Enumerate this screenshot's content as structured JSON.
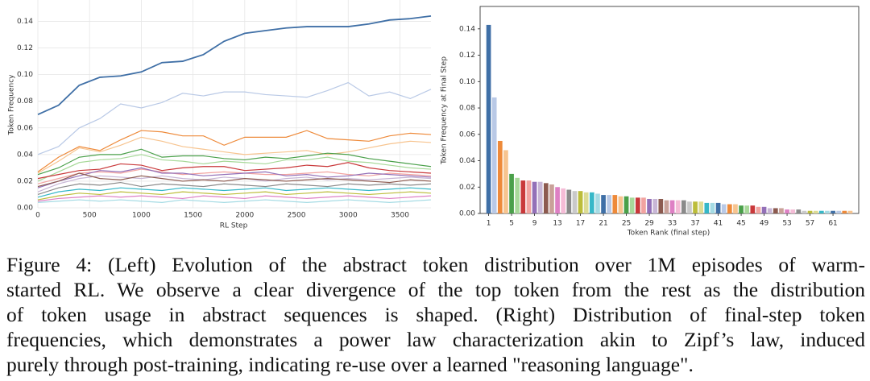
{
  "chart_data": [
    {
      "type": "line",
      "xlabel": "RL Step",
      "ylabel": "Token Frequency",
      "x": [
        0,
        200,
        400,
        600,
        800,
        1000,
        1200,
        1400,
        1600,
        1800,
        2000,
        2200,
        2400,
        2600,
        2800,
        3000,
        3200,
        3400,
        3600,
        3800
      ],
      "xlim": [
        0,
        3800
      ],
      "xticks": [
        0,
        500,
        1000,
        1500,
        2000,
        2500,
        3000,
        3500
      ],
      "ylim": [
        0,
        0.156
      ],
      "yticks": [
        {
          "value": 0,
          "label": "0.00"
        },
        0.02,
        0.04,
        0.06,
        0.08,
        {
          "value": 0.1,
          "label": "0.10"
        },
        0.12,
        0.14
      ],
      "grid": true,
      "series": [
        {
          "color": "#3f6fa6",
          "values": [
            0.07,
            0.077,
            0.092,
            0.098,
            0.099,
            0.102,
            0.109,
            0.11,
            0.115,
            0.125,
            0.131,
            0.133,
            0.135,
            0.136,
            0.136,
            0.136,
            0.138,
            0.141,
            0.142,
            0.144
          ]
        },
        {
          "color": "#b9c9e6",
          "values": [
            0.04,
            0.046,
            0.06,
            0.067,
            0.078,
            0.075,
            0.079,
            0.086,
            0.084,
            0.087,
            0.087,
            0.085,
            0.084,
            0.083,
            0.088,
            0.094,
            0.084,
            0.087,
            0.082,
            0.089
          ]
        },
        {
          "color": "#ee8a3a",
          "values": [
            0.027,
            0.038,
            0.046,
            0.043,
            0.051,
            0.058,
            0.057,
            0.054,
            0.054,
            0.047,
            0.053,
            0.053,
            0.053,
            0.058,
            0.052,
            0.051,
            0.05,
            0.054,
            0.056,
            0.055
          ]
        },
        {
          "color": "#f7c48f",
          "values": [
            0.026,
            0.035,
            0.045,
            0.042,
            0.047,
            0.053,
            0.05,
            0.046,
            0.044,
            0.042,
            0.04,
            0.041,
            0.042,
            0.043,
            0.04,
            0.042,
            0.045,
            0.048,
            0.05,
            0.049
          ]
        },
        {
          "color": "#4aa04a",
          "values": [
            0.025,
            0.03,
            0.038,
            0.04,
            0.04,
            0.044,
            0.038,
            0.039,
            0.039,
            0.037,
            0.036,
            0.038,
            0.037,
            0.039,
            0.041,
            0.04,
            0.037,
            0.035,
            0.033,
            0.031
          ]
        },
        {
          "color": "#a8d99a",
          "values": [
            0.02,
            0.027,
            0.034,
            0.036,
            0.037,
            0.04,
            0.036,
            0.035,
            0.033,
            0.035,
            0.034,
            0.033,
            0.036,
            0.036,
            0.038,
            0.035,
            0.034,
            0.032,
            0.03,
            0.029
          ]
        },
        {
          "color": "#c9383a",
          "values": [
            0.022,
            0.025,
            0.028,
            0.029,
            0.033,
            0.032,
            0.028,
            0.03,
            0.031,
            0.031,
            0.028,
            0.029,
            0.03,
            0.032,
            0.031,
            0.034,
            0.03,
            0.028,
            0.027,
            0.026
          ]
        },
        {
          "color": "#f2a3a0",
          "values": [
            0.018,
            0.022,
            0.026,
            0.027,
            0.026,
            0.029,
            0.027,
            0.025,
            0.026,
            0.027,
            0.026,
            0.025,
            0.025,
            0.026,
            0.027,
            0.025,
            0.024,
            0.026,
            0.025,
            0.024
          ]
        },
        {
          "color": "#9370b8",
          "values": [
            0.015,
            0.02,
            0.024,
            0.028,
            0.027,
            0.03,
            0.026,
            0.026,
            0.024,
            0.025,
            0.026,
            0.027,
            0.024,
            0.025,
            0.023,
            0.024,
            0.026,
            0.025,
            0.024,
            0.023
          ]
        },
        {
          "color": "#c8b6d6",
          "values": [
            0.012,
            0.018,
            0.022,
            0.024,
            0.023,
            0.022,
            0.024,
            0.022,
            0.021,
            0.023,
            0.022,
            0.02,
            0.022,
            0.023,
            0.021,
            0.022,
            0.021,
            0.022,
            0.023,
            0.022
          ]
        },
        {
          "color": "#8c5a4f",
          "values": [
            0.016,
            0.02,
            0.026,
            0.022,
            0.021,
            0.024,
            0.022,
            0.02,
            0.021,
            0.02,
            0.022,
            0.021,
            0.02,
            0.021,
            0.022,
            0.021,
            0.02,
            0.019,
            0.021,
            0.02
          ]
        },
        {
          "color": "#8a8a8a",
          "values": [
            0.01,
            0.015,
            0.018,
            0.017,
            0.019,
            0.016,
            0.018,
            0.017,
            0.016,
            0.018,
            0.017,
            0.016,
            0.018,
            0.017,
            0.016,
            0.018,
            0.017,
            0.018,
            0.017,
            0.018
          ]
        },
        {
          "color": "#36b8c8",
          "values": [
            0.008,
            0.012,
            0.014,
            0.013,
            0.015,
            0.014,
            0.013,
            0.015,
            0.014,
            0.013,
            0.014,
            0.015,
            0.013,
            0.014,
            0.015,
            0.014,
            0.013,
            0.014,
            0.015,
            0.014
          ]
        },
        {
          "color": "#bcbd3a",
          "values": [
            0.006,
            0.009,
            0.011,
            0.01,
            0.012,
            0.011,
            0.01,
            0.012,
            0.011,
            0.01,
            0.011,
            0.012,
            0.01,
            0.011,
            0.012,
            0.011,
            0.01,
            0.011,
            0.012,
            0.011
          ]
        },
        {
          "color": "#de80c4",
          "values": [
            0.005,
            0.007,
            0.008,
            0.009,
            0.008,
            0.009,
            0.008,
            0.007,
            0.009,
            0.008,
            0.007,
            0.009,
            0.008,
            0.007,
            0.008,
            0.009,
            0.008,
            0.007,
            0.008,
            0.009
          ]
        },
        {
          "color": "#a5dbe4",
          "values": [
            0.004,
            0.005,
            0.006,
            0.005,
            0.006,
            0.005,
            0.004,
            0.006,
            0.005,
            0.004,
            0.005,
            0.006,
            0.005,
            0.004,
            0.005,
            0.006,
            0.005,
            0.004,
            0.005,
            0.006
          ]
        }
      ]
    },
    {
      "type": "bar",
      "xlabel": "Token Rank (final step)",
      "ylabel": "Token Frequency at Final Step",
      "categories": [
        "1",
        null,
        null,
        null,
        "5",
        null,
        null,
        null,
        "9",
        null,
        null,
        null,
        "13",
        null,
        null,
        null,
        "17",
        null,
        null,
        null,
        "21",
        null,
        null,
        null,
        "25",
        null,
        null,
        null,
        "29",
        null,
        null,
        null,
        "33",
        null,
        null,
        null,
        "37",
        null,
        null,
        null,
        "41",
        null,
        null,
        null,
        "45",
        null,
        null,
        null,
        "49",
        null,
        null,
        null,
        "53",
        null,
        null,
        null,
        "57",
        null,
        null,
        null,
        "61",
        null,
        null,
        null
      ],
      "values": [
        0.143,
        0.088,
        0.055,
        0.048,
        0.03,
        0.027,
        0.025,
        0.025,
        0.024,
        0.024,
        0.023,
        0.022,
        0.02,
        0.019,
        0.018,
        0.017,
        0.017,
        0.016,
        0.016,
        0.015,
        0.014,
        0.014,
        0.014,
        0.013,
        0.013,
        0.012,
        0.012,
        0.012,
        0.011,
        0.011,
        0.011,
        0.01,
        0.01,
        0.01,
        0.01,
        0.009,
        0.009,
        0.009,
        0.008,
        0.008,
        0.008,
        0.007,
        0.007,
        0.007,
        0.006,
        0.006,
        0.006,
        0.005,
        0.005,
        0.004,
        0.004,
        0.004,
        0.003,
        0.003,
        0.003,
        0.002,
        0.002,
        0.002,
        0.002,
        0.002,
        0.002,
        0.002,
        0.002,
        0.002
      ],
      "colors": [
        "#3f6fa6",
        "#b9c9e6",
        "#ee8a3a",
        "#f7c48f",
        "#4aa04a",
        "#a8d99a",
        "#c9383a",
        "#f2a3a0",
        "#9370b8",
        "#c8b6d6",
        "#8c5a4f",
        "#c9a199",
        "#de80c4",
        "#f4bcd6",
        "#8a8a8a",
        "#c9c9c9",
        "#bcbd3a",
        "#dcdc94",
        "#36b8c8",
        "#a5dbe4"
      ],
      "ylim": [
        0,
        0.157
      ],
      "yticks": [
        {
          "value": 0,
          "label": "0.00"
        },
        0.02,
        0.04,
        0.06,
        0.08,
        {
          "value": 0.1,
          "label": "0.10"
        },
        0.12,
        0.14
      ]
    }
  ],
  "caption": {
    "lines": [
      "Figure 4: (Left) Evolution of the abstract token distribution over 1M episodes of warm-",
      "started RL. We observe a clear divergence of the top token from the rest as the distribution",
      "of token usage in abstract sequences is shaped. (Right) Distribution of final-step token",
      "frequencies, which demonstrates a power law characterization akin to Zipf’s law, induced",
      "purely through post-training, indicating re-use over a learned \"reasoning language\"."
    ]
  }
}
